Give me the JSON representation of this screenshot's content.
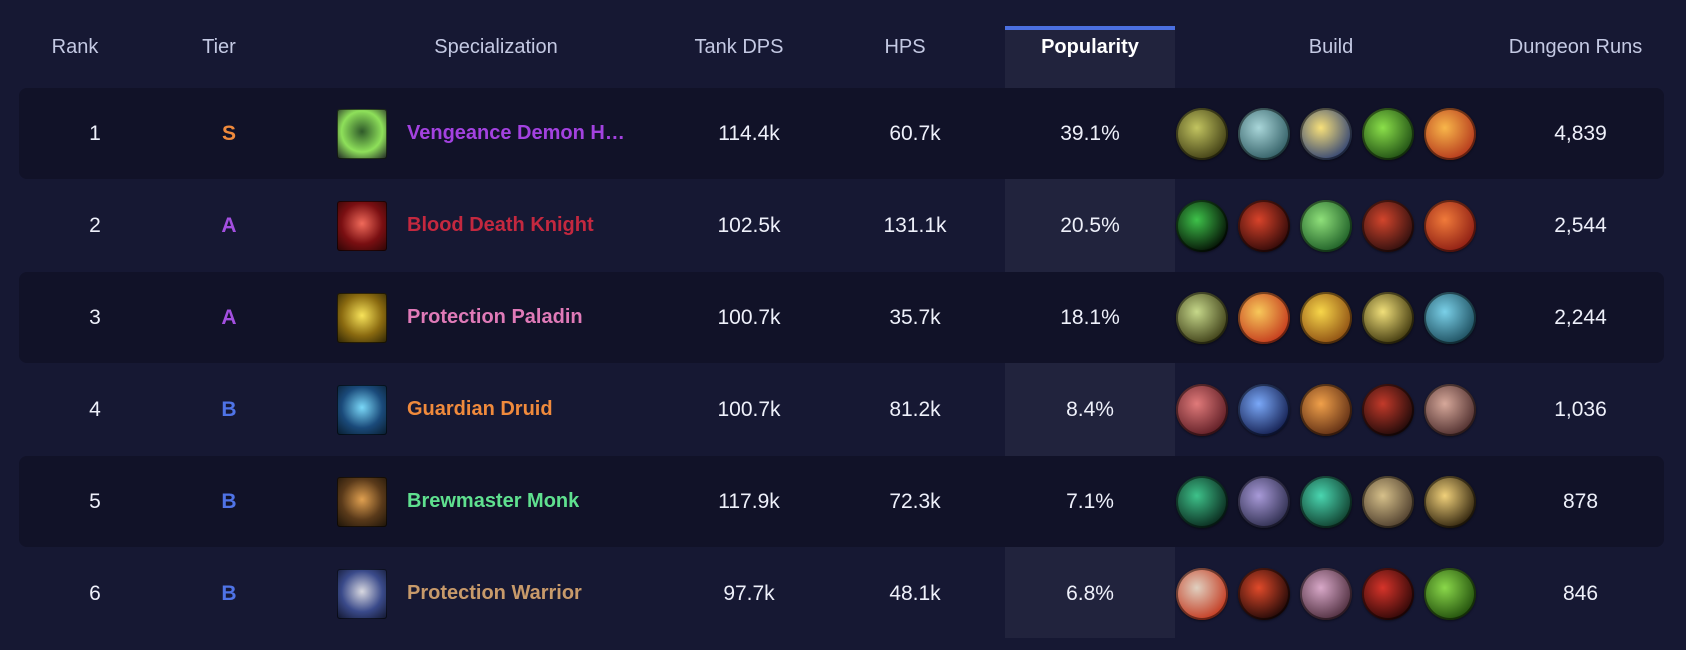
{
  "columns": {
    "rank": "Rank",
    "tier": "Tier",
    "specialization": "Specialization",
    "tank_dps": "Tank DPS",
    "hps": "HPS",
    "popularity": "Popularity",
    "build": "Build",
    "dungeon_runs": "Dungeon Runs"
  },
  "tier_colors": {
    "S": "#f08a3c",
    "A": "#a34fe0",
    "B": "#4f73e6"
  },
  "rows": [
    {
      "rank": "1",
      "tier": "S",
      "spec": "Vengeance Demon Hunter",
      "spec_color": "#a342e0",
      "spec_icon": "vengeance-demon-hunter-icon",
      "spec_icon_colors": [
        "#2f5a2a",
        "#8ee05a",
        "#1a1c22"
      ],
      "tank_dps": "114.4k",
      "hps": "60.7k",
      "popularity": "39.1%",
      "dungeon_runs": "4,839",
      "build": [
        {
          "icon": "demon-hunter-talent-icon",
          "colors": [
            "#c2c460",
            "#3c3a12"
          ]
        },
        {
          "icon": "skull-talent-icon",
          "colors": [
            "#a9d6d9",
            "#2e5a61"
          ]
        },
        {
          "icon": "golden-blast-talent-icon",
          "colors": [
            "#f7e07a",
            "#2c3f73"
          ]
        },
        {
          "icon": "fel-fire-talent-icon",
          "colors": [
            "#8be04a",
            "#1c4a12"
          ]
        },
        {
          "icon": "flame-talent-icon",
          "colors": [
            "#f8b64a",
            "#b2331a"
          ]
        }
      ]
    },
    {
      "rank": "2",
      "tier": "A",
      "spec": "Blood Death Knight",
      "spec_color": "#c4283f",
      "spec_icon": "blood-death-knight-icon",
      "spec_icon_colors": [
        "#f06a5a",
        "#7a0f12",
        "#2a0505"
      ],
      "tank_dps": "102.5k",
      "hps": "131.1k",
      "popularity": "20.5%",
      "dungeon_runs": "2,544",
      "build": [
        {
          "icon": "void-ring-talent-icon",
          "colors": [
            "#3ec24a",
            "#020a02"
          ]
        },
        {
          "icon": "red-skull-talent-icon",
          "colors": [
            "#d8432a",
            "#2a0707"
          ]
        },
        {
          "icon": "green-skull-talent-icon",
          "colors": [
            "#8fe07a",
            "#1a5a24"
          ]
        },
        {
          "icon": "blood-claw-talent-icon",
          "colors": [
            "#d2452c",
            "#2a0d0d"
          ]
        },
        {
          "icon": "blood-burst-talent-icon",
          "colors": [
            "#f07a3a",
            "#8a1a12"
          ]
        }
      ]
    },
    {
      "rank": "3",
      "tier": "A",
      "spec": "Protection Paladin",
      "spec_color": "#e07ab8",
      "spec_icon": "protection-paladin-icon",
      "spec_icon_colors": [
        "#f7e35a",
        "#8a6a10",
        "#2a2205"
      ],
      "tank_dps": "100.7k",
      "hps": "35.7k",
      "popularity": "18.1%",
      "dungeon_runs": "2,244",
      "build": [
        {
          "icon": "holy-lion-talent-icon",
          "colors": [
            "#c6d88a",
            "#3a3a14"
          ]
        },
        {
          "icon": "pillar-of-light-talent-icon",
          "colors": [
            "#f7c85a",
            "#c2341a"
          ]
        },
        {
          "icon": "golden-glow-talent-icon",
          "colors": [
            "#f7d64a",
            "#8a4a10"
          ]
        },
        {
          "icon": "golden-helm-talent-icon",
          "colors": [
            "#f0df7a",
            "#3a320a"
          ]
        },
        {
          "icon": "arcane-ring-talent-icon",
          "colors": [
            "#7ad0e8",
            "#1a4a5a"
          ]
        }
      ]
    },
    {
      "rank": "4",
      "tier": "B",
      "spec": "Guardian Druid",
      "spec_color": "#f08a3c",
      "spec_icon": "guardian-druid-icon",
      "spec_icon_colors": [
        "#7ad8f8",
        "#1a4a7a",
        "#081a2a"
      ],
      "tank_dps": "100.7k",
      "hps": "81.2k",
      "popularity": "8.4%",
      "dungeon_runs": "1,036",
      "build": [
        {
          "icon": "rend-talent-icon",
          "colors": [
            "#e07a7a",
            "#5a1a22"
          ]
        },
        {
          "icon": "moonfire-talent-icon",
          "colors": [
            "#7aa8f8",
            "#101a4a"
          ]
        },
        {
          "icon": "bear-fury-talent-icon",
          "colors": [
            "#f0a04a",
            "#5a2a12"
          ]
        },
        {
          "icon": "bear-head-talent-icon",
          "colors": [
            "#c23a2a",
            "#1a0808"
          ]
        },
        {
          "icon": "claws-talent-icon",
          "colors": [
            "#d6a89a",
            "#4a2a2a"
          ]
        }
      ]
    },
    {
      "rank": "5",
      "tier": "B",
      "spec": "Brewmaster Monk",
      "spec_color": "#5fe08f",
      "spec_icon": "brewmaster-monk-icon",
      "spec_icon_colors": [
        "#e0a050",
        "#5a3a1a",
        "#1a1208"
      ],
      "tank_dps": "117.9k",
      "hps": "72.3k",
      "popularity": "7.1%",
      "dungeon_runs": "878",
      "build": [
        {
          "icon": "jade-swirl-talent-icon",
          "colors": [
            "#3ec28a",
            "#08241a"
          ]
        },
        {
          "icon": "monk-stance-talent-icon",
          "colors": [
            "#a89ad8",
            "#2a2a4a"
          ]
        },
        {
          "icon": "jade-serpent-talent-icon",
          "colors": [
            "#4ad6b0",
            "#0e3a2a"
          ]
        },
        {
          "icon": "brew-keg-talent-icon",
          "colors": [
            "#d6c08a",
            "#4a3a2a"
          ]
        },
        {
          "icon": "iron-fist-talent-icon",
          "colors": [
            "#f0d07a",
            "#2a1e0a"
          ]
        }
      ]
    },
    {
      "rank": "6",
      "tier": "B",
      "spec": "Protection Warrior",
      "spec_color": "#c89a6a",
      "spec_icon": "protection-warrior-icon",
      "spec_icon_colors": [
        "#d8d8e0",
        "#3a4a8a",
        "#10142a"
      ],
      "tank_dps": "97.7k",
      "hps": "48.1k",
      "popularity": "6.8%",
      "dungeon_runs": "846",
      "build": [
        {
          "icon": "shield-block-talent-icon",
          "colors": [
            "#e0d0c0",
            "#c2341a"
          ]
        },
        {
          "icon": "shield-charge-talent-icon",
          "colors": [
            "#e04a2a",
            "#1a0606"
          ]
        },
        {
          "icon": "war-cry-talent-icon",
          "colors": [
            "#d8a8c8",
            "#4a2a3a"
          ]
        },
        {
          "icon": "berserker-talent-icon",
          "colors": [
            "#d6342a",
            "#2a0606"
          ]
        },
        {
          "icon": "ogre-rage-talent-icon",
          "colors": [
            "#8ad84a",
            "#1e4a0a"
          ]
        }
      ]
    }
  ]
}
